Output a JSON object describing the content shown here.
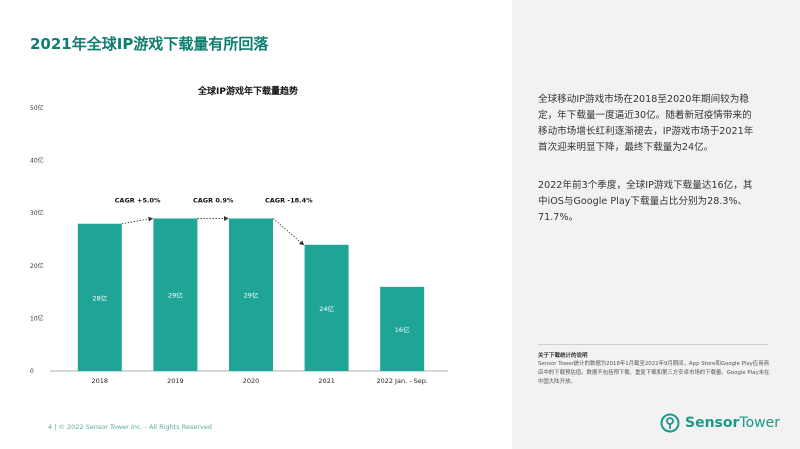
{
  "page": {
    "title": "2021年全球IP游戏下载量有所回落"
  },
  "chart_data": {
    "type": "bar",
    "title": "全球IP游戏年下载量趋势",
    "categories": [
      "2018",
      "2019",
      "2020",
      "2021",
      "2022 Jan. - Sep."
    ],
    "values": [
      28,
      29,
      29,
      24,
      16
    ],
    "value_labels": [
      "28亿",
      "29亿",
      "29亿",
      "24亿",
      "16亿"
    ],
    "ylim": [
      0,
      50
    ],
    "yticks": [
      0,
      10,
      20,
      30,
      40,
      50
    ],
    "ytick_labels": [
      "0",
      "10亿",
      "20亿",
      "30亿",
      "40亿",
      "50亿"
    ],
    "grid": false,
    "bar_color": "#1fa596",
    "annotations": [
      {
        "from": "2018",
        "to": "2019",
        "text": "CAGR +5.0%"
      },
      {
        "from": "2019",
        "to": "2020",
        "text": "CAGR 0.9%"
      },
      {
        "from": "2020",
        "to": "2021",
        "text": "CAGR -18.4%"
      }
    ]
  },
  "sidebar": {
    "paragraph1": "全球移动IP游戏市场在2018至2020年期间较为稳定，年下载量一度逼近30亿。随着新冠疫情带来的移动市场增长红利逐渐褪去，IP游戏市场于2021年首次迎来明显下降，最终下载量为24亿。",
    "paragraph2": "2022年前3个季度，全球IP游戏下载量达16亿，其中iOS与Google Play下载量占比分别为28.3%、71.7%。",
    "note_title": "关于下载统计的说明",
    "note_body": "Sensor Tower统计的数据为2018年1月截至2022年9月期间，App Store和Google Play应用商店中的下载预估值。数据不包括预下载、重复下载和第三方安卓市场的下载量。Google Play未在中国大陆开放。"
  },
  "footer": {
    "text": "4  |  © 2022 Sensor Tower Inc. - All Rights Reserved"
  },
  "logo": {
    "icon": "sensor-tower-logo-icon",
    "word1": "Sensor",
    "word2": "Tower"
  }
}
